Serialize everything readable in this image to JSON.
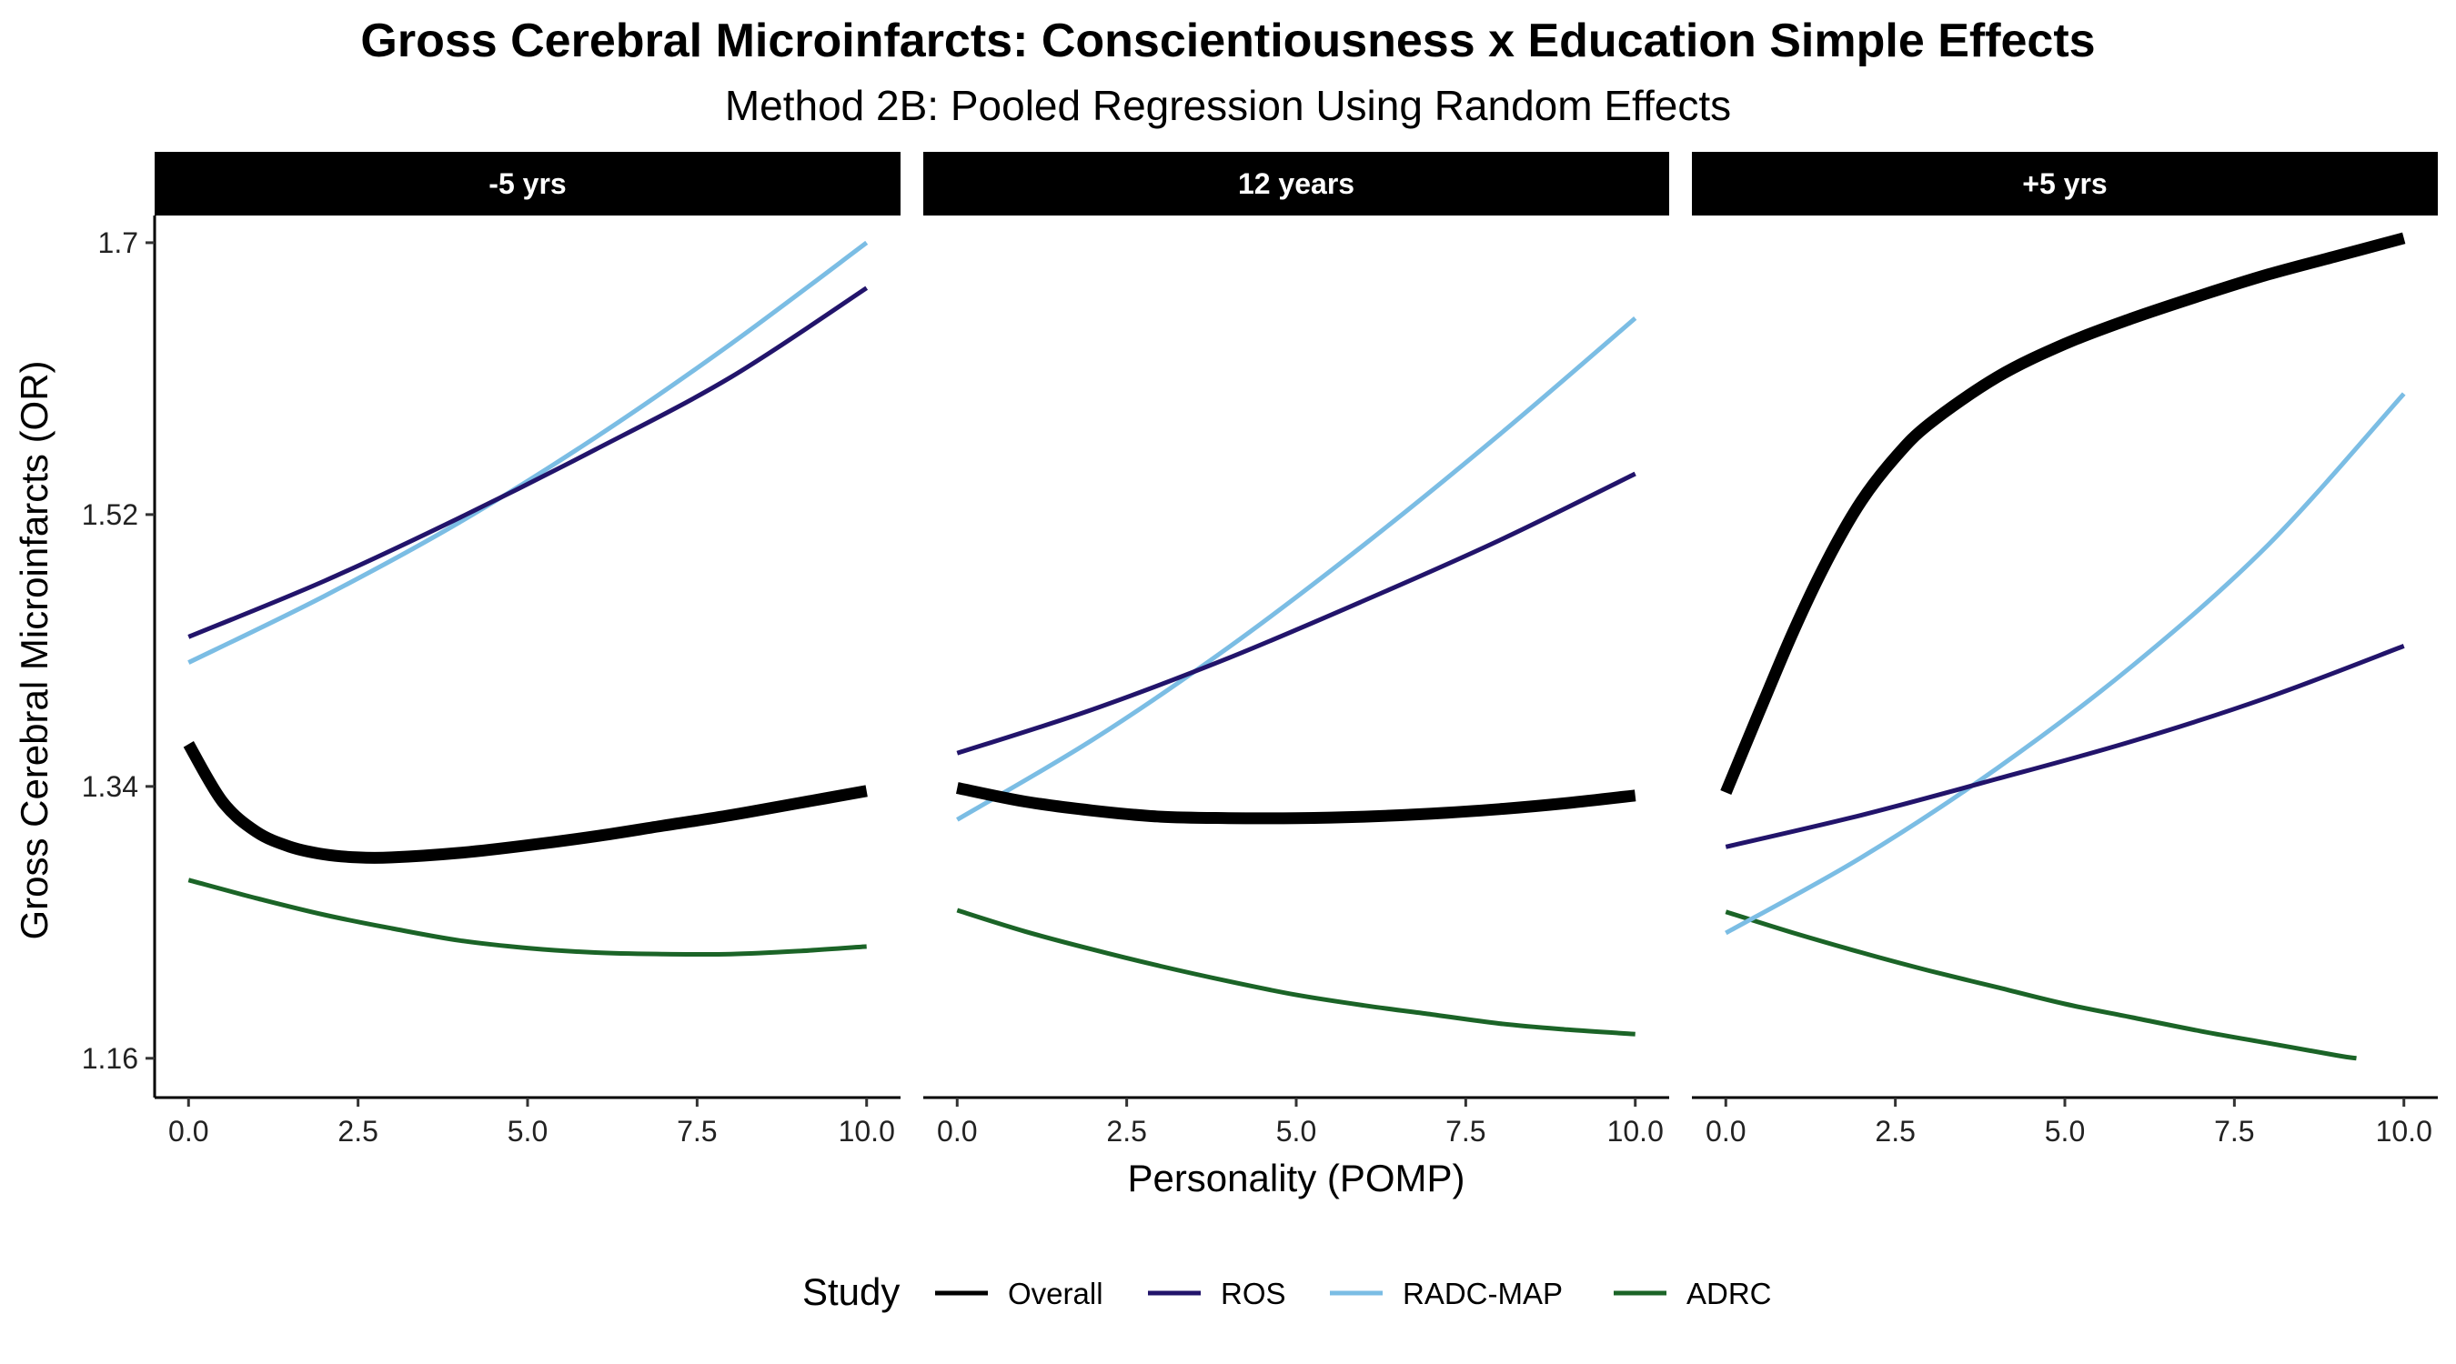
{
  "chart_data": {
    "type": "line",
    "title": "Gross Cerebral Microinfarcts: Conscientiousness x Education Simple Effects",
    "subtitle": "Method 2B: Pooled Regression Using Random Effects",
    "xlabel": "Personality (POMP)",
    "ylabel": "Gross Cerebral Microinfarcts (OR)",
    "xticks": [
      "0.0",
      "2.5",
      "5.0",
      "7.5",
      "10.0"
    ],
    "xtick_values": [
      0,
      2.5,
      5,
      7.5,
      10
    ],
    "yticks": [
      "1.16",
      "1.34",
      "1.52",
      "1.7"
    ],
    "ytick_values": [
      1.16,
      1.34,
      1.52,
      1.7
    ],
    "xlim": [
      -0.5,
      10.5
    ],
    "ylim": [
      1.134,
      1.718
    ],
    "legend": {
      "title": "Study",
      "position": "bottom",
      "entries": [
        "Overall",
        "ROS",
        "RADC-MAP",
        "ADRC"
      ]
    },
    "colors": {
      "Overall": "#000000",
      "ROS": "#22146b",
      "RADC-MAP": "#7bbde4",
      "ADRC": "#1b6427"
    },
    "panels": [
      {
        "label": "-5 yrs",
        "series": [
          {
            "name": "Overall",
            "x": [
              0,
              0.5,
              1,
              1.5,
              2,
              2.5,
              3,
              4,
              5,
              6,
              7,
              8,
              9,
              10
            ],
            "y": [
              1.368,
              1.33,
              1.31,
              1.3,
              1.295,
              1.293,
              1.293,
              1.296,
              1.301,
              1.307,
              1.314,
              1.321,
              1.329,
              1.337
            ]
          },
          {
            "name": "ROS",
            "x": [
              0,
              2,
              4,
              6,
              8,
              10
            ],
            "y": [
              1.439,
              1.476,
              1.518,
              1.563,
              1.611,
              1.67
            ]
          },
          {
            "name": "RADC-MAP",
            "x": [
              0,
              2,
              4,
              6,
              8,
              10
            ],
            "y": [
              1.422,
              1.466,
              1.515,
              1.571,
              1.633,
              1.7
            ]
          },
          {
            "name": "ADRC",
            "x": [
              0,
              1,
              2,
              3,
              4,
              5,
              6,
              7,
              8,
              9,
              10
            ],
            "y": [
              1.278,
              1.266,
              1.255,
              1.246,
              1.238,
              1.233,
              1.23,
              1.229,
              1.229,
              1.231,
              1.234
            ]
          }
        ]
      },
      {
        "label": "12 years",
        "series": [
          {
            "name": "Overall",
            "x": [
              0,
              1,
              2,
              3,
              4,
              5,
              6,
              7,
              8,
              9,
              10
            ],
            "y": [
              1.339,
              1.33,
              1.324,
              1.32,
              1.319,
              1.319,
              1.32,
              1.322,
              1.325,
              1.329,
              1.334
            ]
          },
          {
            "name": "ROS",
            "x": [
              0,
              2,
              4,
              6,
              8,
              10
            ],
            "y": [
              1.362,
              1.391,
              1.425,
              1.463,
              1.503,
              1.547
            ]
          },
          {
            "name": "RADC-MAP",
            "x": [
              0,
              2,
              4,
              6,
              8,
              10
            ],
            "y": [
              1.318,
              1.371,
              1.432,
              1.5,
              1.573,
              1.65
            ]
          },
          {
            "name": "ADRC",
            "x": [
              0,
              1,
              2,
              3,
              4,
              5,
              6,
              7,
              8,
              9,
              10
            ],
            "y": [
              1.258,
              1.244,
              1.232,
              1.221,
              1.211,
              1.202,
              1.195,
              1.189,
              1.183,
              1.179,
              1.176
            ]
          }
        ]
      },
      {
        "label": "+5 yrs",
        "series": [
          {
            "name": "Overall",
            "x": [
              0,
              0.5,
              1,
              1.5,
              2,
              2.5,
              3,
              4,
              5,
              6,
              7,
              8,
              9,
              10
            ],
            "y": [
              1.336,
              1.39,
              1.443,
              1.49,
              1.529,
              1.558,
              1.58,
              1.611,
              1.633,
              1.65,
              1.665,
              1.679,
              1.691,
              1.703
            ]
          },
          {
            "name": "ROS",
            "x": [
              0,
              2,
              4,
              6,
              8,
              10
            ],
            "y": [
              1.3,
              1.321,
              1.345,
              1.37,
              1.399,
              1.433
            ]
          },
          {
            "name": "RADC-MAP",
            "x": [
              0,
              2,
              4,
              6,
              8,
              10
            ],
            "y": [
              1.243,
              1.293,
              1.352,
              1.42,
              1.5,
              1.6
            ]
          },
          {
            "name": "ADRC",
            "x": [
              0,
              1,
              2,
              3,
              4,
              5,
              6,
              7,
              8,
              9,
              9.3
            ],
            "y": [
              1.257,
              1.243,
              1.23,
              1.218,
              1.207,
              1.196,
              1.187,
              1.178,
              1.17,
              1.162,
              1.16
            ]
          }
        ]
      }
    ]
  }
}
